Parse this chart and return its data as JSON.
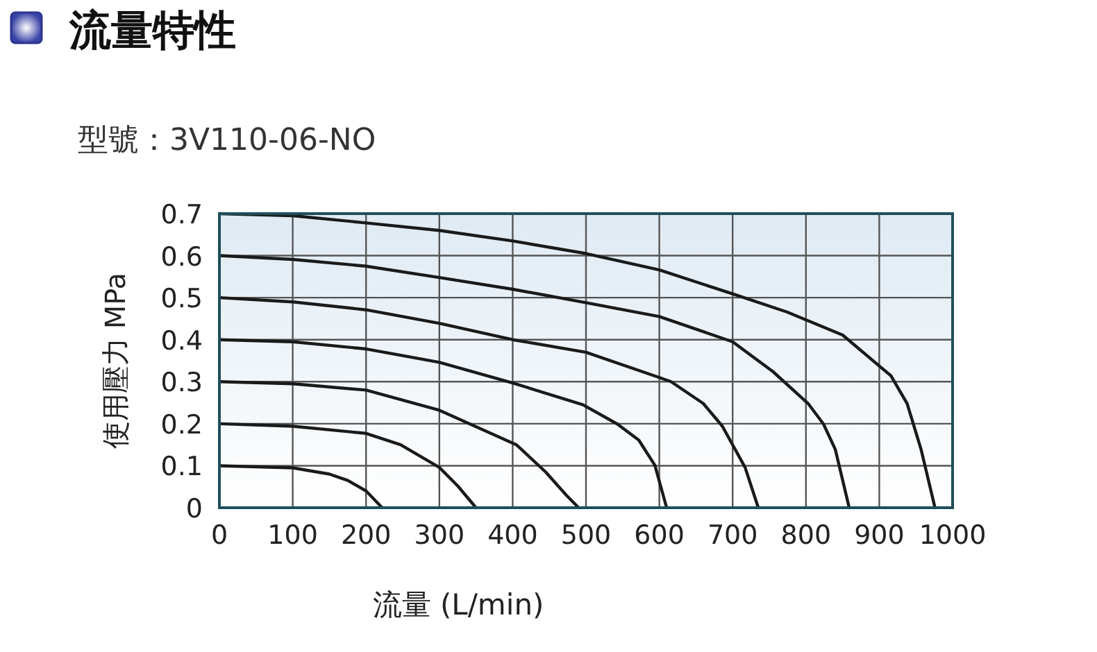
{
  "chart_data": {
    "type": "line",
    "title": "流量特性",
    "subtitle": "型號：3V110-06-NO",
    "xlabel": "流量 (L/min)",
    "ylabel": "使用壓力 MPa",
    "xlim": [
      0,
      1000
    ],
    "xticks": [
      0,
      100,
      200,
      300,
      400,
      500,
      600,
      700,
      800,
      900,
      1000
    ],
    "ylim": [
      0,
      0.7
    ],
    "yticks": [
      0,
      0.1,
      0.2,
      0.3,
      0.4,
      0.5,
      0.6,
      0.7
    ],
    "grid": true,
    "marker": "none",
    "line_style": "solid",
    "series": [
      {
        "color": "#1a1a1a",
        "x": [
          0,
          100,
          150,
          175,
          200,
          222
        ],
        "values": [
          0.1,
          0.095,
          0.08,
          0.065,
          0.04,
          0
        ]
      },
      {
        "color": "#1a1a1a",
        "x": [
          0,
          100,
          200,
          247,
          300,
          325,
          350
        ],
        "values": [
          0.2,
          0.194,
          0.177,
          0.15,
          0.096,
          0.052,
          0
        ]
      },
      {
        "color": "#1a1a1a",
        "x": [
          0,
          100,
          200,
          300,
          405,
          445,
          473,
          490
        ],
        "values": [
          0.3,
          0.295,
          0.28,
          0.232,
          0.15,
          0.085,
          0.03,
          0
        ]
      },
      {
        "color": "#1a1a1a",
        "x": [
          0,
          100,
          200,
          300,
          400,
          496,
          543,
          572,
          594,
          610
        ],
        "values": [
          0.4,
          0.395,
          0.378,
          0.346,
          0.297,
          0.245,
          0.199,
          0.161,
          0.101,
          0
        ]
      },
      {
        "color": "#1a1a1a",
        "x": [
          0,
          100,
          200,
          300,
          400,
          500,
          600,
          616,
          660,
          686,
          717,
          735
        ],
        "values": [
          0.5,
          0.49,
          0.471,
          0.439,
          0.4,
          0.37,
          0.31,
          0.3,
          0.248,
          0.194,
          0.096,
          0
        ]
      },
      {
        "color": "#1a1a1a",
        "x": [
          0,
          100,
          200,
          300,
          400,
          500,
          600,
          700,
          755,
          803,
          824,
          840,
          859
        ],
        "values": [
          0.6,
          0.591,
          0.575,
          0.548,
          0.52,
          0.488,
          0.455,
          0.395,
          0.324,
          0.248,
          0.199,
          0.139,
          0
        ]
      },
      {
        "color": "#1a1a1a",
        "x": [
          0,
          100,
          200,
          300,
          400,
          500,
          600,
          700,
          774,
          850,
          916,
          938,
          957,
          976
        ],
        "values": [
          0.7,
          0.695,
          0.678,
          0.66,
          0.635,
          0.605,
          0.566,
          0.509,
          0.466,
          0.411,
          0.314,
          0.248,
          0.139,
          0
        ]
      }
    ]
  }
}
